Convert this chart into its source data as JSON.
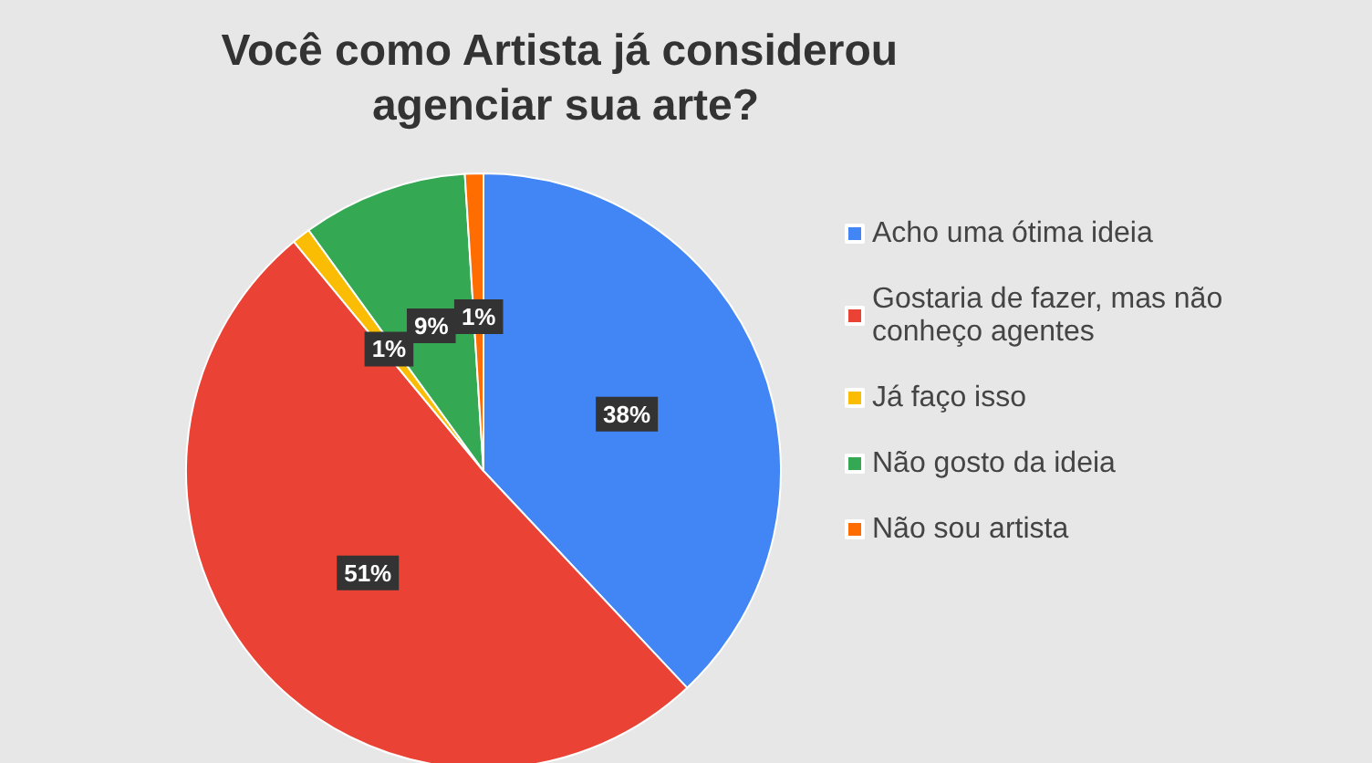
{
  "chart_data": {
    "type": "pie",
    "title": "Você como Artista já considerou agenciar sua arte?",
    "categories": [
      "Acho uma ótima ideia",
      "Gostaria de fazer, mas não conheço agentes",
      "Já faço isso",
      "Não gosto da ideia",
      "Não sou artista"
    ],
    "values": [
      38,
      51,
      1,
      9,
      1
    ],
    "colors": [
      "#4285f4",
      "#ea4335",
      "#fbbc04",
      "#34a853",
      "#ff6d01"
    ],
    "value_labels": [
      "38%",
      "51%",
      "1%",
      "9%",
      "1%"
    ],
    "legend": "right"
  }
}
